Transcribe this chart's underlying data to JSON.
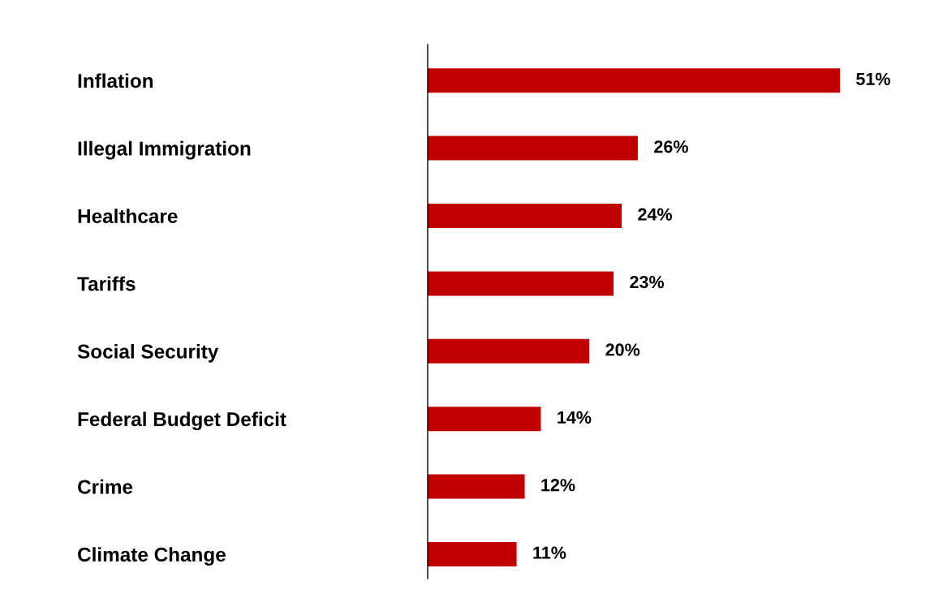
{
  "chart_data": {
    "type": "bar",
    "orientation": "horizontal",
    "categories": [
      "Inflation",
      "Illegal Immigration",
      "Healthcare",
      "Tariffs",
      "Social Security",
      "Federal Budget Deficit",
      "Crime",
      "Climate Change"
    ],
    "values": [
      51,
      26,
      24,
      23,
      20,
      14,
      12,
      11
    ],
    "value_labels": [
      "51%",
      "26%",
      "24%",
      "23%",
      "20%",
      "14%",
      "12%",
      "11%"
    ],
    "color": "#c00000",
    "grid": false,
    "legend": false
  }
}
